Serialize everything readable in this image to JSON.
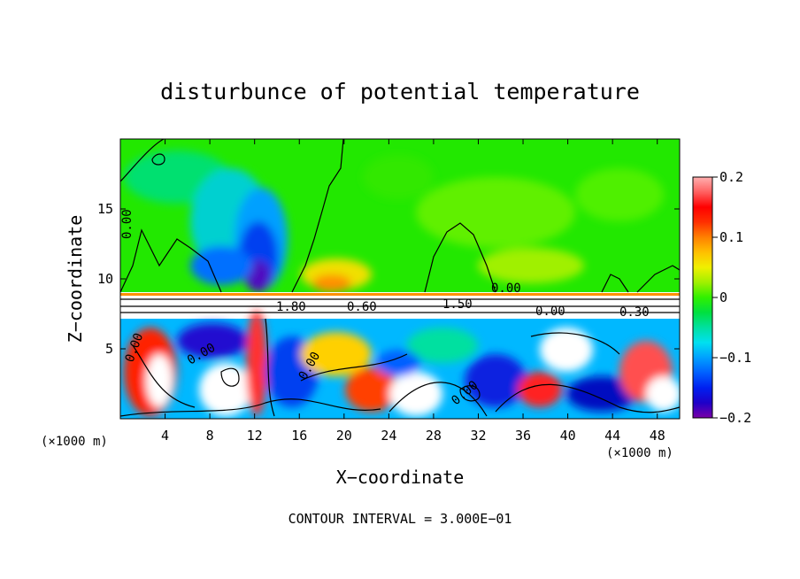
{
  "chart_data": {
    "type": "heatmap",
    "title": "disturbunce of potential temperature",
    "xlabel": "X−coordinate",
    "ylabel": "Z−coordinate",
    "x_unit_left": "(×1000 m)",
    "x_unit_right": "(×1000 m)",
    "x_ticks": [
      "4",
      "8",
      "12",
      "16",
      "20",
      "24",
      "28",
      "32",
      "36",
      "40",
      "44",
      "48"
    ],
    "y_ticks": [
      "5",
      "10",
      "15"
    ],
    "xlim": [
      0,
      50
    ],
    "ylim": [
      0,
      20
    ],
    "colorbar": {
      "ticks": [
        "0.2",
        "0.1",
        "0",
        "−0.1",
        "−0.2"
      ],
      "range": [
        -0.2,
        0.2
      ],
      "colors": [
        "#7a00a8",
        "#1e00c8",
        "#0020f0",
        "#0060ff",
        "#00a0ff",
        "#00e0f0",
        "#00e0a0",
        "#00e040",
        "#30f000",
        "#a0f000",
        "#f0f000",
        "#ffc000",
        "#ff8000",
        "#ff3000",
        "#ff0000",
        "#ff6060",
        "#ffb0b0"
      ]
    },
    "contour_labels": [
      "0.00",
      "0.00",
      "0.00",
      "0.00",
      "0.00",
      "0.00",
      "0.00",
      "0.60",
      "1.80",
      "1.50",
      "0.30"
    ],
    "footer": "CONTOUR INTERVAL = 3.000E−01"
  }
}
